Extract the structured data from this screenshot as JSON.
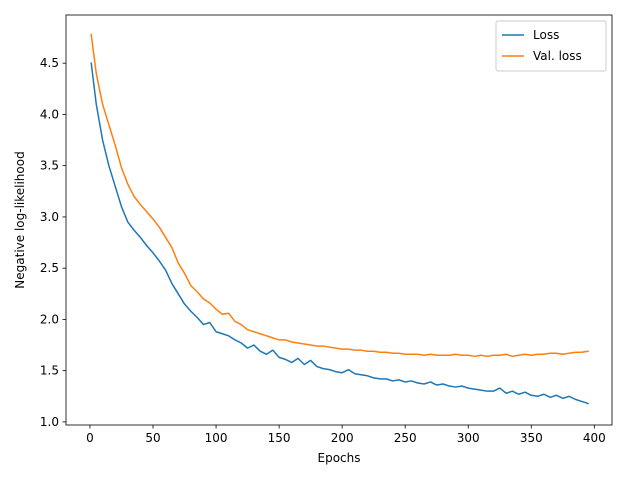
{
  "chart_data": {
    "type": "line",
    "title": "",
    "xlabel": "Epochs",
    "ylabel": "Negative log-likelihood",
    "xlim": [
      -19,
      414
    ],
    "ylim": [
      0.97,
      4.97
    ],
    "xticks": [
      0,
      50,
      100,
      150,
      200,
      250,
      300,
      350,
      400
    ],
    "xtick_labels": [
      "0",
      "50",
      "100",
      "150",
      "200",
      "250",
      "300",
      "350",
      "400"
    ],
    "yticks": [
      1.0,
      1.5,
      2.0,
      2.5,
      3.0,
      3.5,
      4.0,
      4.5
    ],
    "ytick_labels": [
      "1.0",
      "1.5",
      "2.0",
      "2.5",
      "3.0",
      "3.5",
      "4.0",
      "4.5"
    ],
    "grid": false,
    "legend_position": "top-right",
    "series": [
      {
        "name": "Loss",
        "color": "#1f77b4",
        "x": [
          1,
          5,
          10,
          15,
          20,
          25,
          30,
          35,
          40,
          45,
          50,
          55,
          60,
          65,
          70,
          75,
          80,
          85,
          90,
          95,
          100,
          105,
          110,
          115,
          120,
          125,
          130,
          135,
          140,
          145,
          150,
          155,
          160,
          165,
          170,
          175,
          180,
          185,
          190,
          195,
          200,
          205,
          210,
          215,
          220,
          225,
          230,
          235,
          240,
          245,
          250,
          255,
          260,
          265,
          270,
          275,
          280,
          285,
          290,
          295,
          300,
          305,
          310,
          315,
          320,
          325,
          330,
          335,
          340,
          345,
          350,
          355,
          360,
          365,
          370,
          375,
          380,
          385,
          390,
          395
        ],
        "values": [
          4.5,
          4.1,
          3.75,
          3.5,
          3.3,
          3.1,
          2.95,
          2.87,
          2.8,
          2.72,
          2.65,
          2.57,
          2.48,
          2.35,
          2.25,
          2.15,
          2.08,
          2.02,
          1.95,
          1.97,
          1.88,
          1.86,
          1.84,
          1.8,
          1.77,
          1.72,
          1.75,
          1.69,
          1.66,
          1.7,
          1.63,
          1.61,
          1.58,
          1.62,
          1.56,
          1.6,
          1.54,
          1.52,
          1.51,
          1.49,
          1.48,
          1.51,
          1.47,
          1.46,
          1.45,
          1.43,
          1.42,
          1.42,
          1.4,
          1.41,
          1.39,
          1.4,
          1.38,
          1.37,
          1.39,
          1.36,
          1.37,
          1.35,
          1.34,
          1.35,
          1.33,
          1.32,
          1.31,
          1.3,
          1.3,
          1.33,
          1.28,
          1.3,
          1.27,
          1.29,
          1.26,
          1.25,
          1.27,
          1.24,
          1.26,
          1.23,
          1.25,
          1.22,
          1.2,
          1.18
        ]
      },
      {
        "name": "Val. loss",
        "color": "#ff7f0e",
        "x": [
          1,
          5,
          10,
          15,
          20,
          25,
          30,
          35,
          40,
          45,
          50,
          55,
          60,
          65,
          70,
          75,
          80,
          85,
          90,
          95,
          100,
          105,
          110,
          115,
          120,
          125,
          130,
          135,
          140,
          145,
          150,
          155,
          160,
          165,
          170,
          175,
          180,
          185,
          190,
          195,
          200,
          205,
          210,
          215,
          220,
          225,
          230,
          235,
          240,
          245,
          250,
          255,
          260,
          265,
          270,
          275,
          280,
          285,
          290,
          295,
          300,
          305,
          310,
          315,
          320,
          325,
          330,
          335,
          340,
          345,
          350,
          355,
          360,
          365,
          370,
          375,
          380,
          385,
          390,
          395
        ],
        "values": [
          4.78,
          4.4,
          4.1,
          3.9,
          3.7,
          3.48,
          3.32,
          3.2,
          3.12,
          3.05,
          2.98,
          2.9,
          2.8,
          2.7,
          2.55,
          2.45,
          2.33,
          2.27,
          2.2,
          2.16,
          2.1,
          2.05,
          2.06,
          1.98,
          1.95,
          1.9,
          1.88,
          1.86,
          1.84,
          1.82,
          1.8,
          1.8,
          1.78,
          1.77,
          1.76,
          1.75,
          1.74,
          1.74,
          1.73,
          1.72,
          1.71,
          1.71,
          1.7,
          1.7,
          1.69,
          1.69,
          1.68,
          1.68,
          1.67,
          1.67,
          1.66,
          1.66,
          1.66,
          1.65,
          1.66,
          1.65,
          1.65,
          1.65,
          1.66,
          1.65,
          1.65,
          1.64,
          1.65,
          1.64,
          1.65,
          1.65,
          1.66,
          1.64,
          1.65,
          1.66,
          1.65,
          1.66,
          1.66,
          1.67,
          1.67,
          1.66,
          1.67,
          1.68,
          1.68,
          1.69
        ]
      }
    ]
  }
}
